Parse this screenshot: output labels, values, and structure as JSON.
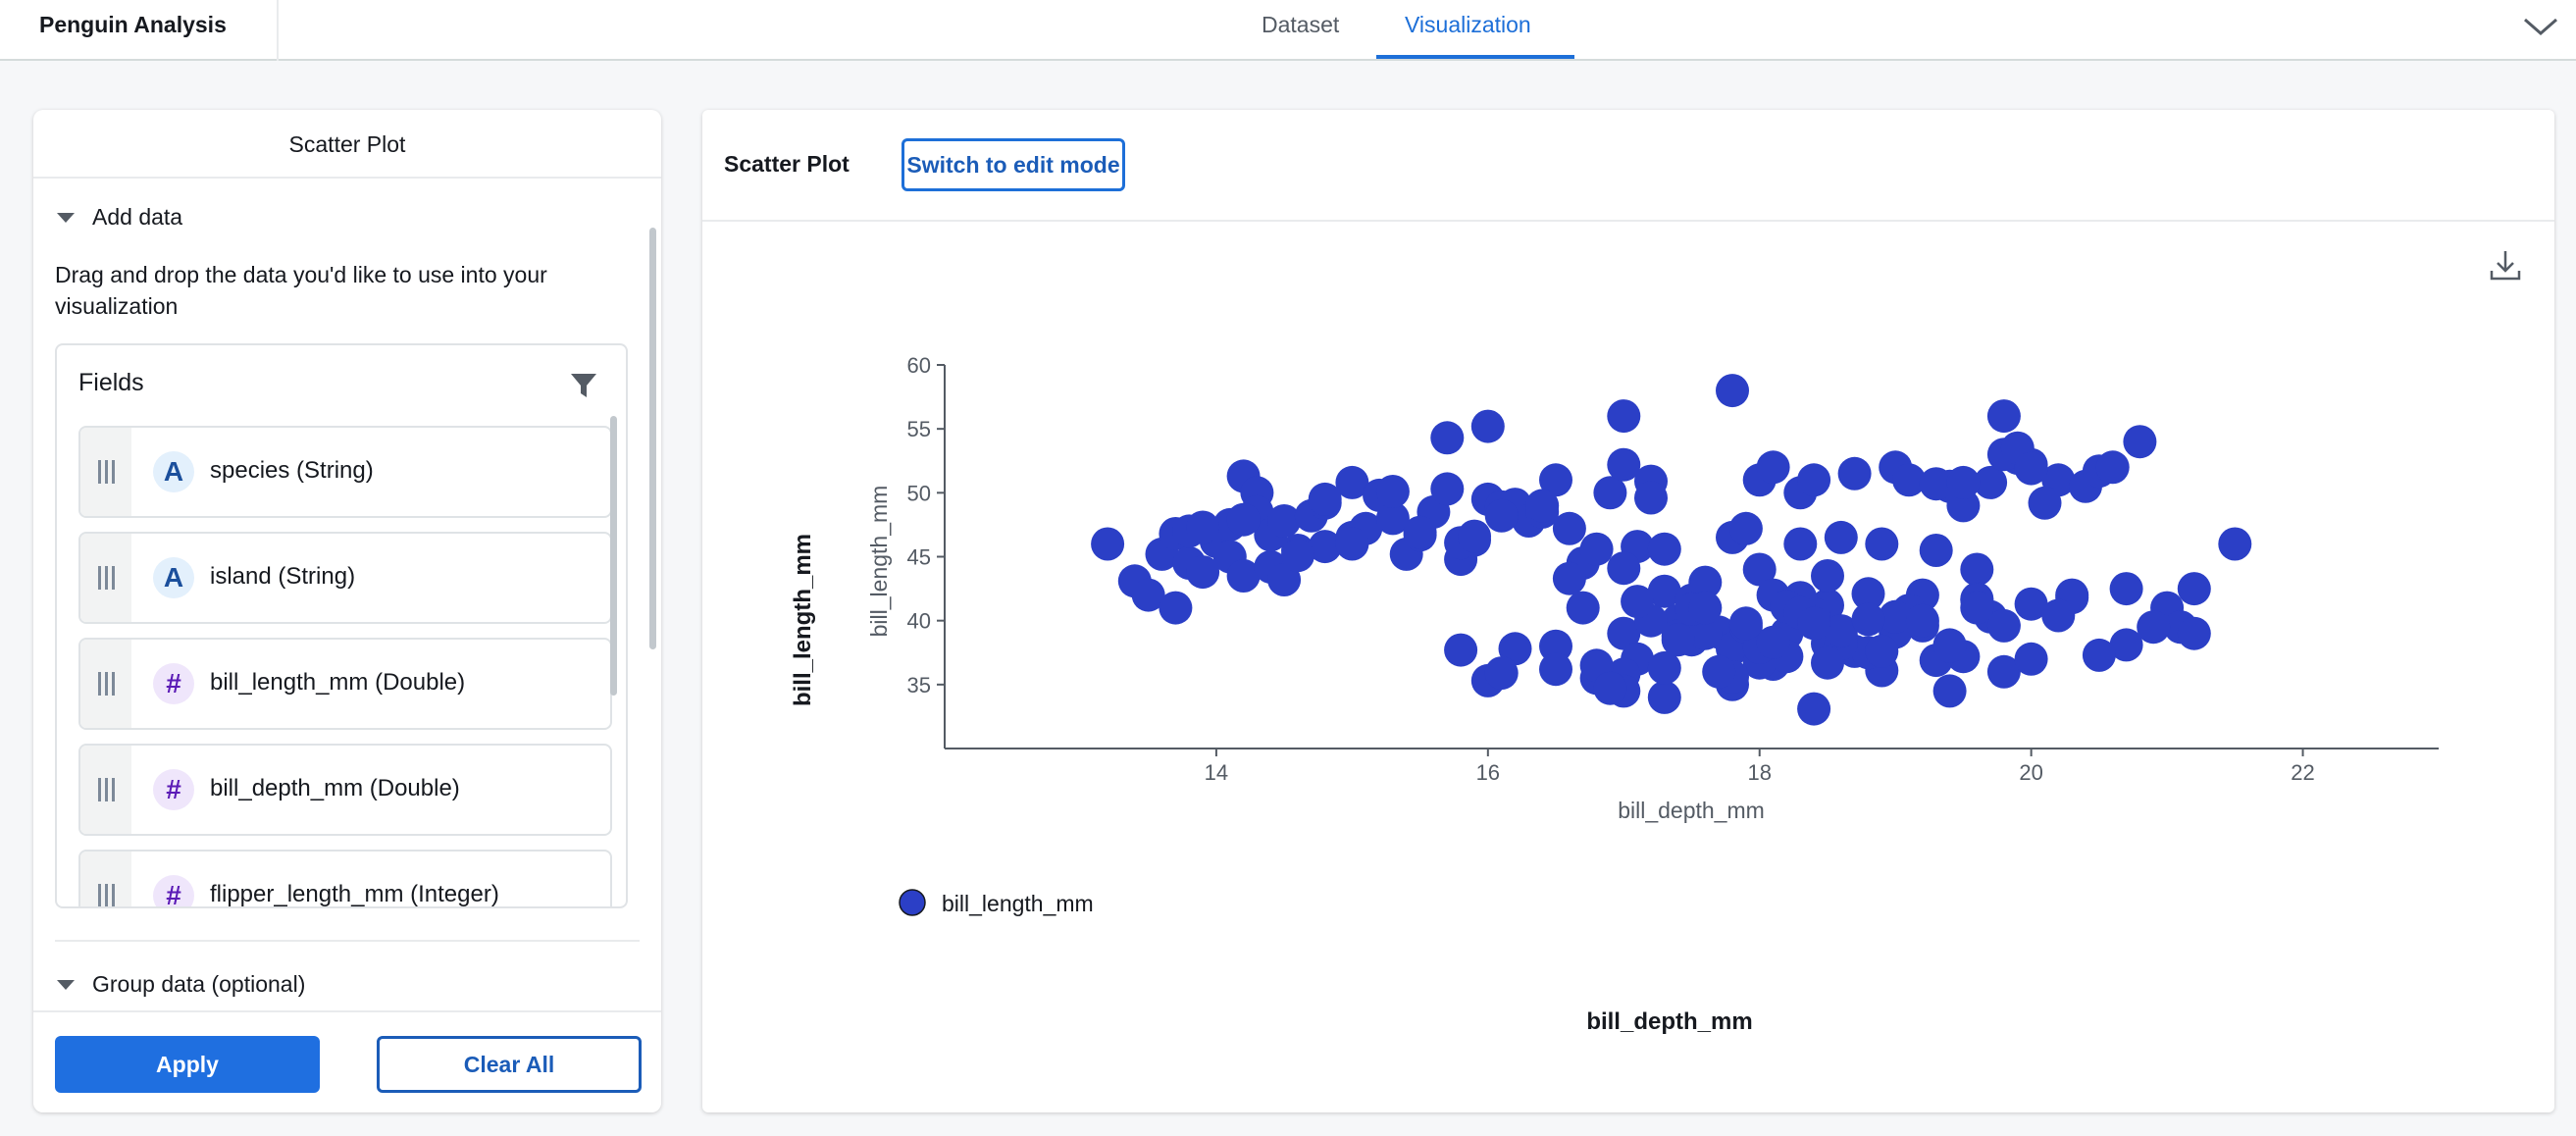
{
  "app": {
    "title": "Penguin Analysis"
  },
  "tabs": [
    {
      "label": "Dataset",
      "active": false
    },
    {
      "label": "Visualization",
      "active": true
    }
  ],
  "left_panel": {
    "header": "Scatter Plot",
    "add_data": {
      "label": "Add data",
      "helper_text": "Drag and drop the data you'd like to use into your visualization"
    },
    "fields": {
      "title": "Fields",
      "items": [
        {
          "label": "species (String)",
          "type_icon": "A",
          "kind": "string"
        },
        {
          "label": "island (String)",
          "type_icon": "A",
          "kind": "string"
        },
        {
          "label": "bill_length_mm (Double)",
          "type_icon": "#",
          "kind": "number"
        },
        {
          "label": "bill_depth_mm (Double)",
          "type_icon": "#",
          "kind": "number"
        },
        {
          "label": "flipper_length_mm (Integer)",
          "type_icon": "#",
          "kind": "number"
        }
      ]
    },
    "group_data": {
      "label": "Group data (optional)"
    },
    "buttons": {
      "apply": "Apply",
      "clear": "Clear All"
    }
  },
  "right_panel": {
    "title": "Scatter Plot",
    "edit_button": "Switch to edit mode",
    "outer_y_label": "bill_length_mm",
    "outer_x_label": "bill_depth_mm"
  },
  "colors": {
    "accent": "#1d6fd8",
    "points": "#2b3fc6",
    "button_fill": "#1f6fe0"
  },
  "chart_data": {
    "type": "scatter",
    "xlabel": "bill_depth_mm",
    "ylabel": "bill_length_mm",
    "xlim": [
      12,
      23
    ],
    "ylim": [
      30,
      60
    ],
    "x_ticks": [
      14,
      16,
      18,
      20,
      22
    ],
    "y_ticks": [
      35,
      40,
      45,
      50,
      55,
      60
    ],
    "grid": false,
    "legend_position": "bottom-left",
    "series": [
      {
        "name": "bill_length_mm",
        "x": [
          13.2,
          13.4,
          13.5,
          13.6,
          13.7,
          13.7,
          13.8,
          13.8,
          13.9,
          14.0,
          14.1,
          14.1,
          14.2,
          14.2,
          14.3,
          14.3,
          14.4,
          14.4,
          14.5,
          14.5,
          14.6,
          14.7,
          14.8,
          14.8,
          15.0,
          15.0,
          15.1,
          15.2,
          15.3,
          15.4,
          15.5,
          15.6,
          15.7,
          15.7,
          15.8,
          15.9,
          16.0,
          16.0,
          16.1,
          16.2,
          16.3,
          16.4,
          16.5,
          16.6,
          16.7,
          16.8,
          13.9,
          14.2,
          14.6,
          15.0,
          15.5,
          15.8,
          16.1,
          16.4,
          14.8,
          15.3,
          15.9,
          16.6,
          16.5,
          16.7,
          16.9,
          17.0,
          17.0,
          17.1,
          17.2,
          17.2,
          17.3,
          17.3,
          17.4,
          17.5,
          17.6,
          17.7,
          17.8,
          17.8,
          17.9,
          18.0,
          18.0,
          18.1,
          18.1,
          18.2,
          18.3,
          18.3,
          18.4,
          18.5,
          18.5,
          18.6,
          18.7,
          18.8,
          18.9,
          19.0,
          19.0,
          19.1,
          19.2,
          19.3,
          19.4,
          19.4,
          19.5,
          19.6,
          19.7,
          19.8,
          19.9,
          17.0,
          17.2,
          17.5,
          17.8,
          18.1,
          18.4,
          18.6,
          18.9,
          19.2,
          19.5,
          19.8,
          17.4,
          17.9,
          18.3,
          18.7,
          19.1,
          16.5,
          16.8,
          17.1,
          17.6,
          18.0,
          18.2,
          18.5,
          18.8,
          19.3,
          15.8,
          16.0,
          16.2,
          18.4,
          19.4,
          16.1,
          17.0,
          17.3,
          17.8,
          19.8,
          20.0,
          20.2,
          20.4,
          20.5,
          20.6,
          20.7,
          20.8,
          21.0,
          21.1,
          21.2,
          21.5,
          20.0,
          20.3,
          20.7,
          21.1,
          21.2,
          19.9,
          20.1,
          20.5,
          20.9,
          17.0,
          17.3,
          17.8,
          18.2,
          18.6,
          19.0,
          19.4,
          19.7,
          20.0,
          16.8,
          17.5,
          18.0,
          18.5,
          19.0,
          19.8,
          17.1,
          17.6,
          18.1,
          18.6,
          19.2,
          19.6,
          17.0,
          17.4,
          17.9,
          18.3,
          19.6,
          20.3,
          19.3,
          19.5,
          20.0,
          16.9,
          17.7,
          18.9,
          19.6,
          20.2,
          18.4,
          18.8
        ],
        "y": [
          46.0,
          43.1,
          42.0,
          45.2,
          41.0,
          46.8,
          44.5,
          47.0,
          43.8,
          46.2,
          47.5,
          45.0,
          51.3,
          43.5,
          50.0,
          48.5,
          44.2,
          46.7,
          43.2,
          47.8,
          45.5,
          48.2,
          49.2,
          45.8,
          50.8,
          46.5,
          47.2,
          49.8,
          48.0,
          45.2,
          46.7,
          48.5,
          50.3,
          54.3,
          44.8,
          46.3,
          55.2,
          49.5,
          48.9,
          49.1,
          47.8,
          48.5,
          51.0,
          47.2,
          44.5,
          45.6,
          47.3,
          47.9,
          45.1,
          46.0,
          46.9,
          46.1,
          48.2,
          49.0,
          49.5,
          50.1,
          46.6,
          43.3,
          38.0,
          41.0,
          50.0,
          56.0,
          52.2,
          45.8,
          50.9,
          49.6,
          45.6,
          42.3,
          40.0,
          41.6,
          43.0,
          39.1,
          46.5,
          58.0,
          47.2,
          51.0,
          44.0,
          42.0,
          52.0,
          39.0,
          50.0,
          46.0,
          51.0,
          41.2,
          43.5,
          46.5,
          51.5,
          42.1,
          46.0,
          52.0,
          40.3,
          51.0,
          42.0,
          45.5,
          50.5,
          38.1,
          49.0,
          44.0,
          50.8,
          56.0,
          52.7,
          39.0,
          40.0,
          38.5,
          37.8,
          36.6,
          40.5,
          38.9,
          36.1,
          39.6,
          37.2,
          53.0,
          38.8,
          39.5,
          41.8,
          37.6,
          40.8,
          36.2,
          35.5,
          37.0,
          39.0,
          36.7,
          41.1,
          38.2,
          37.5,
          36.9,
          37.7,
          35.3,
          37.8,
          33.1,
          34.5,
          35.9,
          35.8,
          34.0,
          35.0,
          36.0,
          52.2,
          51.0,
          50.5,
          51.7,
          52.0,
          42.5,
          54.0,
          41.0,
          39.5,
          42.5,
          46.0,
          37.0,
          41.8,
          38.1,
          39.5,
          39.0,
          53.5,
          49.2,
          37.3,
          39.5,
          34.5,
          36.3,
          35.6,
          37.2,
          38.2,
          39.1,
          38.0,
          40.3,
          41.3,
          36.5,
          40.9,
          37.9,
          36.7,
          40.3,
          39.6,
          41.5,
          41.0,
          38.3,
          39.2,
          40.0,
          41.7,
          44.1,
          38.5,
          39.8,
          40.6,
          41.6,
          42.0,
          50.7,
          50.8,
          51.9,
          34.7,
          36.0,
          37.6,
          41.0,
          40.4,
          39.8,
          40.1
        ]
      }
    ]
  }
}
